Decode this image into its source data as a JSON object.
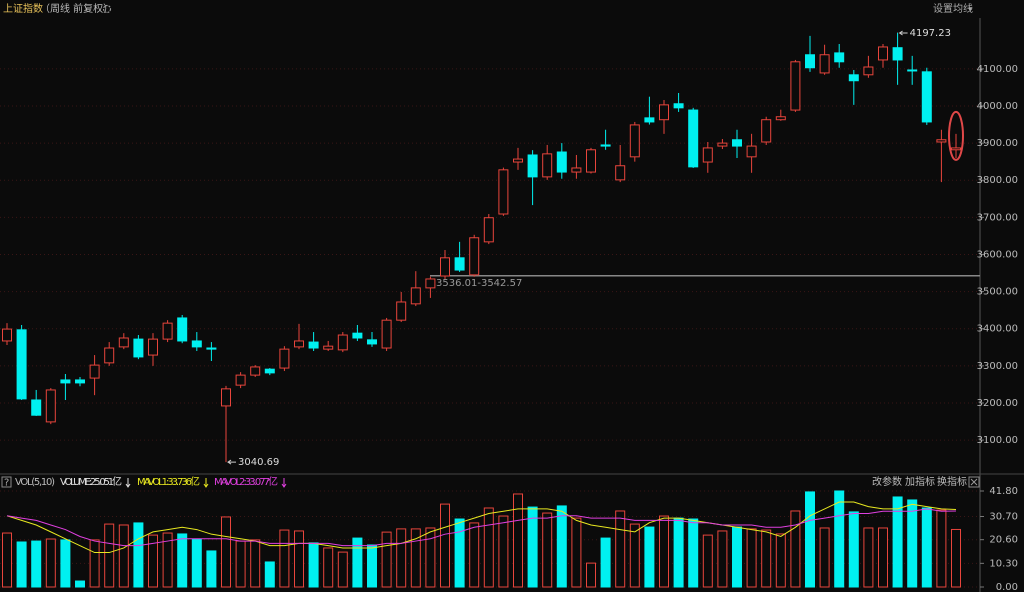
{
  "header": {
    "title": "上证指数",
    "subtitle": "（周线 前复权）",
    "settings": "设置均线"
  },
  "toolbar": [
    "改参数",
    "加指标",
    "换指标"
  ],
  "chart_data": [
    {
      "type": "candlestick",
      "up_color": "#e8453c",
      "down_color": "#00f0f0",
      "open": [
        3367,
        3397,
        3208,
        3149,
        3262,
        3262,
        3267,
        3308,
        3351,
        3372,
        3329,
        3372,
        3429,
        3367,
        3348,
        3192,
        3248,
        3275,
        3291,
        3294,
        3351,
        3364,
        3345,
        3343,
        3388,
        3370,
        3348,
        3423,
        3467,
        3510,
        3542,
        3591,
        3545,
        3634,
        3709,
        3849,
        3868,
        3809,
        3876,
        3822,
        3822,
        3895,
        3801,
        3863,
        3968,
        3963,
        4006,
        3989,
        3849,
        3892,
        3909,
        3863,
        3903,
        3963,
        3989,
        4138,
        4089,
        4143,
        4084,
        4084,
        4124,
        4157,
        4097,
        4092,
        3903,
        3882
      ],
      "close": [
        3399,
        3211,
        3167,
        3235,
        3254,
        3254,
        3302,
        3348,
        3375,
        3324,
        3372,
        3415,
        3367,
        3351,
        3345,
        3238,
        3275,
        3297,
        3281,
        3345,
        3367,
        3348,
        3353,
        3383,
        3375,
        3359,
        3423,
        3472,
        3510,
        3534,
        3591,
        3558,
        3645,
        3699,
        3828,
        3857,
        3809,
        3871,
        3822,
        3833,
        3882,
        3892,
        3839,
        3949,
        3957,
        4003,
        3995,
        3836,
        3887,
        3900,
        3892,
        3892,
        3963,
        3971,
        4119,
        4103,
        4138,
        4119,
        4068,
        4105,
        4159,
        4124,
        4095,
        3957,
        3909,
        3887
      ],
      "high": [
        3415,
        3410,
        3235,
        3240,
        3278,
        3270,
        3329,
        3364,
        3388,
        3383,
        3388,
        3423,
        3437,
        3391,
        3364,
        3246,
        3283,
        3302,
        3294,
        3353,
        3413,
        3391,
        3367,
        3391,
        3410,
        3391,
        3429,
        3499,
        3555,
        3540,
        3612,
        3634,
        3653,
        3709,
        3834,
        3887,
        3881,
        3895,
        3900,
        3868,
        3887,
        3936,
        3895,
        3957,
        4025,
        4016,
        4035,
        3995,
        3903,
        3911,
        3936,
        3925,
        3971,
        3990,
        4124,
        4189,
        4165,
        4167,
        4097,
        4135,
        4167,
        4197.23,
        4135,
        4103,
        3936,
        3925
      ],
      "low": [
        3356,
        3208,
        3165,
        3143,
        3208,
        3245,
        3221,
        3300,
        3345,
        3318,
        3300,
        3364,
        3361,
        3340,
        3313,
        3040.69,
        3240,
        3270,
        3275,
        3286,
        3345,
        3340,
        3340,
        3337,
        3367,
        3351,
        3340,
        3418,
        3461,
        3483,
        3534,
        3553,
        3540,
        3628,
        3704,
        3828,
        3733,
        3801,
        3804,
        3804,
        3818,
        3882,
        3795,
        3850,
        3950,
        3925,
        3984,
        3833,
        3820,
        3884,
        3860,
        3820,
        3895,
        3960,
        3984,
        4092,
        4084,
        4103,
        4003,
        4076,
        4103,
        4057,
        4057,
        3949,
        3795,
        3860
      ],
      "ylim": [
        3014,
        4237
      ],
      "yticks": [
        {
          "value": 3100,
          "label": "3100.00"
        },
        {
          "value": 3200,
          "label": "3200.00"
        },
        {
          "value": 3300,
          "label": "3300.00"
        },
        {
          "value": 3400,
          "label": "3400.00"
        },
        {
          "value": 3500,
          "label": "3500.00"
        },
        {
          "value": 3600,
          "label": "3600.00"
        },
        {
          "value": 3700,
          "label": "3700.00"
        },
        {
          "value": 3800,
          "label": "3800.00"
        },
        {
          "value": 3900,
          "label": "3900.00"
        },
        {
          "value": 4000,
          "label": "4000.00"
        },
        {
          "value": 4100,
          "label": "4100.00"
        }
      ],
      "annotations": [
        {
          "label": "3536.01-3542.57",
          "value": 3542.57
        }
      ]
    },
    {
      "type": "bar",
      "indicator": "VOL(5,10)",
      "series": [
        {
          "name": "VOLUME:25.051亿",
          "color": "#e0e0e0",
          "values": [
            23.5,
            19.6,
            20.0,
            20.9,
            20.5,
            2.6,
            20.5,
            27.4,
            27.0,
            27.9,
            22.6,
            23.5,
            23.1,
            20.9,
            15.7,
            30.5,
            20.0,
            20.5,
            10.9,
            24.8,
            24.4,
            19.2,
            17.0,
            15.2,
            21.3,
            18.3,
            23.9,
            25.3,
            25.3,
            25.7,
            36.1,
            29.6,
            27.9,
            34.4,
            30.9,
            40.5,
            34.8,
            32.2,
            35.3,
            30.0,
            10.4,
            21.3,
            33.1,
            27.4,
            26.1,
            30.9,
            30.0,
            29.6,
            22.6,
            24.4,
            26.1,
            25.3,
            24.8,
            23.1,
            33.1,
            41.4,
            25.7,
            41.8,
            32.7,
            25.7,
            25.7,
            39.2,
            37.9,
            34.4,
            33.5,
            25.051
          ]
        },
        {
          "name": "MAVOL1:33.736亿",
          "color": "#e8e820",
          "values": [
            31,
            29,
            27,
            24,
            21,
            18,
            15,
            15,
            17,
            21,
            24,
            25,
            26,
            25,
            23,
            22,
            21,
            20,
            18,
            18,
            19,
            19,
            18,
            17,
            17,
            17,
            18,
            19,
            21,
            24,
            26,
            28,
            30,
            32,
            33,
            34,
            34,
            34,
            33,
            29,
            27,
            26,
            25,
            24,
            28,
            30,
            30,
            29,
            28,
            27,
            26,
            25,
            24,
            22,
            26,
            31,
            34,
            37,
            37,
            35,
            34,
            34,
            36,
            35,
            34,
            33.736
          ]
        },
        {
          "name": "MAVOL2:33.077亿",
          "color": "#e040e0",
          "values": [
            31,
            30,
            29,
            27,
            25,
            22,
            20,
            19,
            18,
            18,
            19,
            20,
            21,
            21,
            21,
            21,
            20,
            20,
            19,
            19,
            19,
            19,
            19,
            18,
            18,
            18,
            19,
            19,
            20,
            21,
            23,
            24,
            26,
            27,
            28,
            29,
            30,
            30,
            31,
            31,
            30,
            30,
            30,
            29,
            29,
            29,
            29,
            28,
            28,
            27,
            27,
            27,
            26,
            26,
            27,
            29,
            30,
            31,
            32,
            32,
            33,
            33,
            33,
            34,
            33,
            33.077
          ]
        }
      ],
      "ylim": [
        0,
        41.8
      ],
      "yticks": [
        {
          "value": 0,
          "label": "0.00"
        },
        {
          "value": 10.3,
          "label": "10.30"
        },
        {
          "value": 20.6,
          "label": "20.60"
        },
        {
          "value": 30.7,
          "label": "30.70"
        },
        {
          "value": 41.8,
          "label": "41.80"
        }
      ]
    }
  ]
}
